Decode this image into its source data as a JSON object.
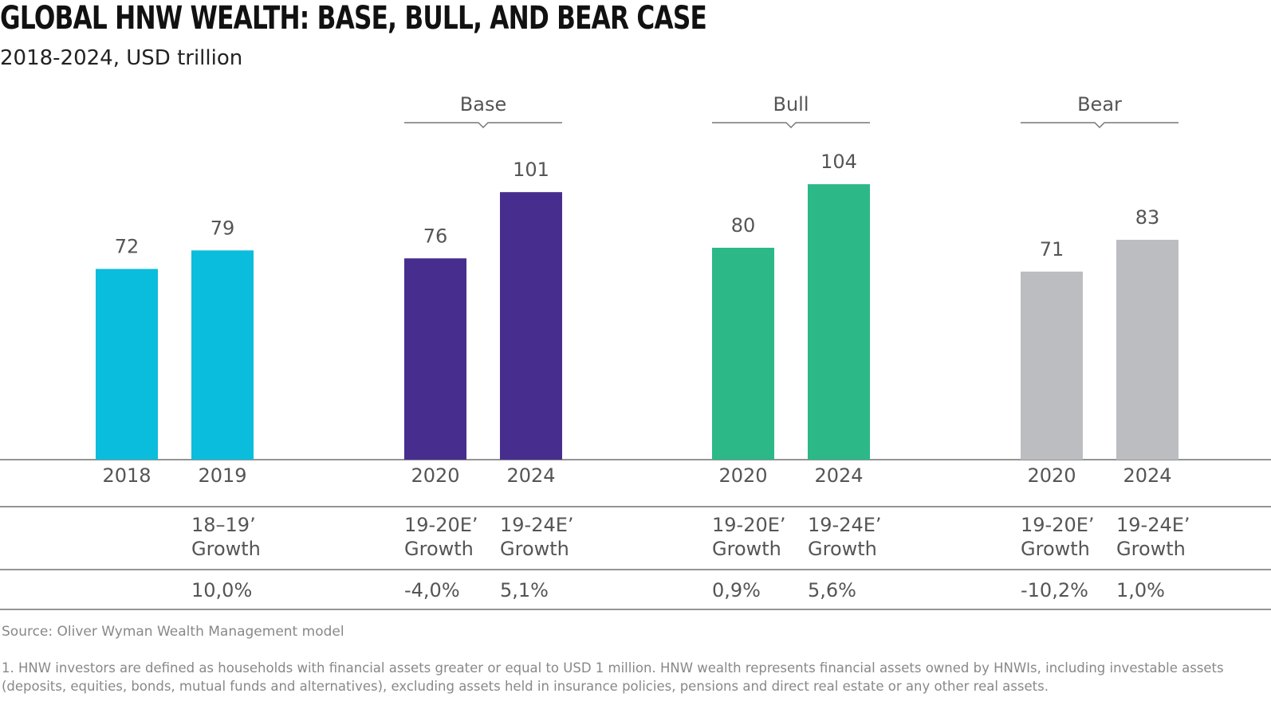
{
  "title": "GLOBAL HNW WEALTH: BASE, BULL, AND BEAR CASE",
  "subtitle": "2018-2024, USD trillion",
  "chart_data": {
    "type": "bar",
    "title": "GLOBAL HNW WEALTH: BASE, BULL, AND BEAR CASE",
    "subtitle": "2018-2024, USD trillion",
    "groups": [
      {
        "name": "",
        "color": "#0BBDDC",
        "bars": [
          {
            "label": "2018",
            "value": 72
          },
          {
            "label": "2019",
            "value": 79
          }
        ]
      },
      {
        "name": "Base",
        "color": "#472E8E",
        "bars": [
          {
            "label": "2020",
            "value": 76
          },
          {
            "label": "2024",
            "value": 101
          }
        ]
      },
      {
        "name": "Bull",
        "color": "#2DB887",
        "bars": [
          {
            "label": "2020",
            "value": 80
          },
          {
            "label": "2024",
            "value": 104
          }
        ]
      },
      {
        "name": "Bear",
        "color": "#BCBDC1",
        "bars": [
          {
            "label": "2020",
            "value": 71
          },
          {
            "label": "2024",
            "value": 83
          }
        ]
      }
    ],
    "ylim": [
      0,
      115
    ],
    "grid": false,
    "growth_table": [
      {
        "line1": "18–19’",
        "line2": "Growth",
        "value": "10,0%"
      },
      {
        "line1": "19-20E’",
        "line2": "Growth",
        "value": "-4,0%"
      },
      {
        "line1": "19-24E’",
        "line2": "Growth",
        "value": "5,1%"
      },
      {
        "line1": "19-20E’",
        "line2": "Growth",
        "value": "0,9%"
      },
      {
        "line1": "19-24E’",
        "line2": "Growth",
        "value": "5,6%"
      },
      {
        "line1": "19-20E’",
        "line2": "Growth",
        "value": "-10,2%"
      },
      {
        "line1": "19-24E’",
        "line2": "Growth",
        "value": "1,0%"
      }
    ]
  },
  "source": "Source: Oliver Wyman Wealth Management model",
  "footnote": "1. HNW investors are defined as households with financial assets greater or equal to USD 1 million. HNW wealth represents financial assets owned by HNWIs, including investable assets (deposits, equities, bonds, mutual funds and alternatives), excluding assets held in insurance policies, pensions and direct real estate or any other real assets."
}
